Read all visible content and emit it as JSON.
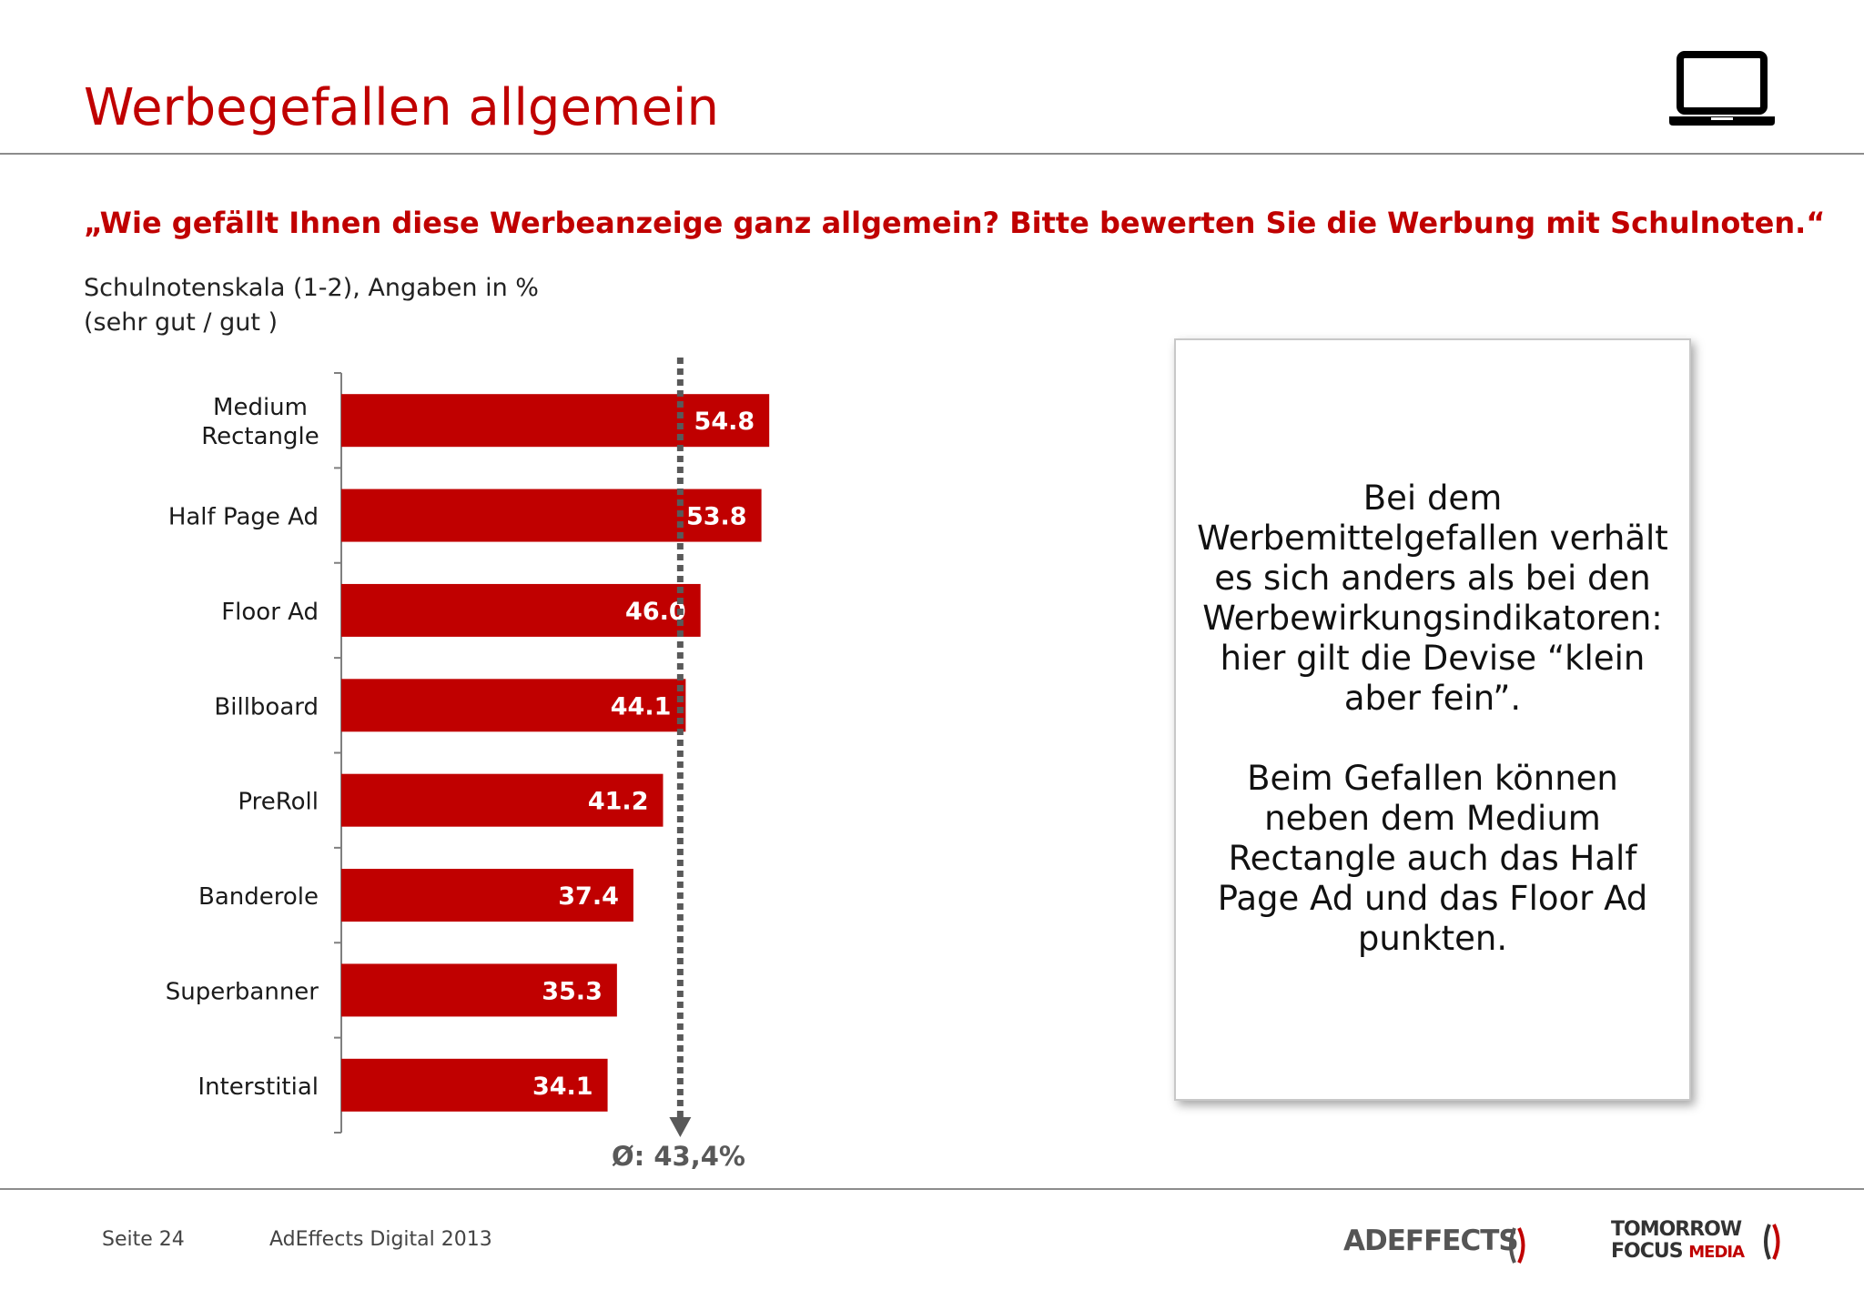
{
  "header": {
    "title": "Werbegefallen allgemein",
    "device_icon": "laptop-icon"
  },
  "question": "„Wie gefällt Ihnen diese Werbeanzeige ganz allgemein? Bitte bewerten Sie die Werbung mit Schulnoten.“",
  "scale_note": {
    "line1": "Schulnotenskala (1-2), Angaben in %",
    "line2": "(sehr gut / gut )"
  },
  "chart_data": {
    "type": "bar",
    "orientation": "horizontal",
    "categories": [
      "Medium\nRectangle",
      "Half Page Ad",
      "Floor Ad",
      "Billboard",
      "PreRoll",
      "Banderole",
      "Superbanner",
      "Interstitial"
    ],
    "values": [
      54.8,
      53.8,
      46.0,
      44.1,
      41.2,
      37.4,
      35.3,
      34.1
    ],
    "data_labels": [
      "54.8",
      "53.8",
      "46.0",
      "44.1",
      "41.2",
      "37.4",
      "35.3",
      "34.1"
    ],
    "xlim": [
      0,
      100
    ],
    "average": {
      "value": 43.4,
      "label": "Ø: 43,4%"
    },
    "bar_color": "#c00000",
    "average_line_color": "#595959",
    "grid": false,
    "legend": "none"
  },
  "info_box": {
    "paragraph1": "Bei dem Werbemittelgefallen verhält es sich anders als bei den Werbewirkungsindikatoren: hier gilt die Devise “klein aber fein”.",
    "paragraph2": "Beim Gefallen können neben dem Medium Rectangle auch das Half Page Ad und das Floor Ad punkten."
  },
  "footer": {
    "page": "Seite 24",
    "source": "AdEffects Digital 2013",
    "logo1": {
      "part1": "AD",
      "part2": "EFFECTS"
    },
    "logo2": {
      "line1": "TOMORROW",
      "line2a": "FOCUS",
      "line2b": "MEDIA"
    }
  },
  "colors": {
    "accent": "#c00000",
    "rule": "#8c8c8c"
  }
}
